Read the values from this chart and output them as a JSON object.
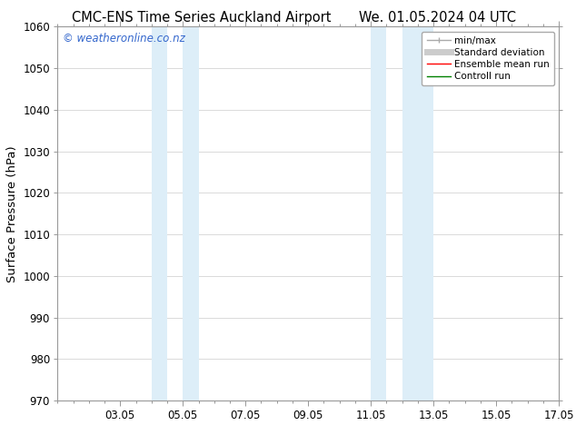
{
  "title_left": "CMC-ENS Time Series Auckland Airport",
  "title_right": "We. 01.05.2024 04 UTC",
  "ylabel": "Surface Pressure (hPa)",
  "ylim": [
    970,
    1060
  ],
  "yticks": [
    970,
    980,
    990,
    1000,
    1010,
    1020,
    1030,
    1040,
    1050,
    1060
  ],
  "xlim": [
    1,
    17
  ],
  "xtick_labels": [
    "03.05",
    "05.05",
    "07.05",
    "09.05",
    "11.05",
    "13.05",
    "15.05",
    "17.05"
  ],
  "xtick_positions": [
    3,
    5,
    7,
    9,
    11,
    13,
    15,
    17
  ],
  "shaded_bands": [
    {
      "x_start": 4.0,
      "x_end": 4.5,
      "color": "#ddeef8"
    },
    {
      "x_start": 5.0,
      "x_end": 5.5,
      "color": "#ddeef8"
    },
    {
      "x_start": 11.0,
      "x_end": 11.5,
      "color": "#ddeef8"
    },
    {
      "x_start": 12.0,
      "x_end": 13.0,
      "color": "#ddeef8"
    }
  ],
  "watermark_text": "© weatheronline.co.nz",
  "watermark_color": "#3366cc",
  "legend_entries": [
    {
      "label": "min/max",
      "color": "#aaaaaa",
      "lw": 1.0
    },
    {
      "label": "Standard deviation",
      "color": "#cccccc",
      "lw": 5
    },
    {
      "label": "Ensemble mean run",
      "color": "red",
      "lw": 1.0
    },
    {
      "label": "Controll run",
      "color": "green",
      "lw": 1.0
    }
  ],
  "background_color": "#ffffff",
  "plot_bg_color": "#ffffff",
  "grid_color": "#cccccc",
  "spine_color": "#999999",
  "title_fontsize": 10.5,
  "tick_fontsize": 8.5,
  "label_fontsize": 9.5,
  "legend_fontsize": 7.5
}
